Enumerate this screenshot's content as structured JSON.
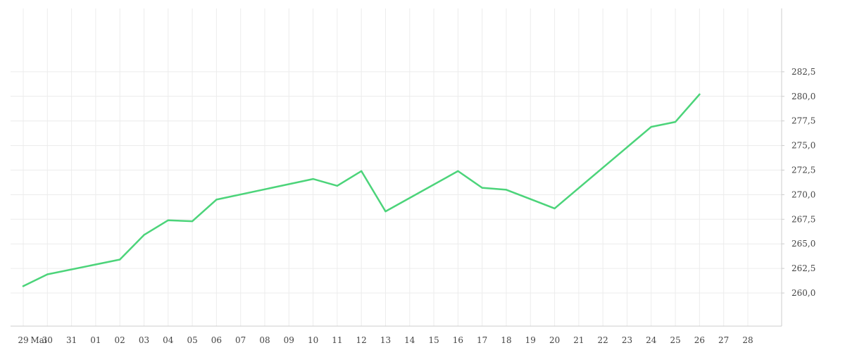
{
  "chart_data": {
    "type": "line",
    "title": "",
    "xlabel": "",
    "ylabel": "",
    "grid": true,
    "ylim": [
      258.0,
      283.0
    ],
    "y_ticks": [
      {
        "value": 260.0,
        "label": "260,0"
      },
      {
        "value": 262.5,
        "label": "262,5"
      },
      {
        "value": 265.0,
        "label": "265,0"
      },
      {
        "value": 267.5,
        "label": "267,5"
      },
      {
        "value": 270.0,
        "label": "270,0"
      },
      {
        "value": 272.5,
        "label": "272,5"
      },
      {
        "value": 275.0,
        "label": "275,0"
      },
      {
        "value": 277.5,
        "label": "277,5"
      },
      {
        "value": 280.0,
        "label": "280,0"
      },
      {
        "value": 282.5,
        "label": "282,5"
      }
    ],
    "x_ticks": [
      "29",
      "Mai",
      "30",
      "31",
      "01",
      "02",
      "03",
      "04",
      "05",
      "06",
      "07",
      "08",
      "09",
      "10",
      "11",
      "12",
      "13",
      "14",
      "15",
      "16",
      "17",
      "18",
      "19",
      "20",
      "21",
      "22",
      "23",
      "24",
      "25",
      "26",
      "27",
      "28"
    ],
    "series": [
      {
        "color": "#4cd47a",
        "x": [
          "29",
          "30",
          "02",
          "03",
          "04",
          "05",
          "06",
          "10",
          "11",
          "12",
          "13",
          "16",
          "17",
          "18",
          "20",
          "24",
          "25",
          "26"
        ],
        "values": [
          260.7,
          261.9,
          263.4,
          265.9,
          267.4,
          267.3,
          269.5,
          271.6,
          270.9,
          272.4,
          268.3,
          272.4,
          270.7,
          270.5,
          268.6,
          276.9,
          277.4,
          280.2
        ]
      }
    ]
  }
}
